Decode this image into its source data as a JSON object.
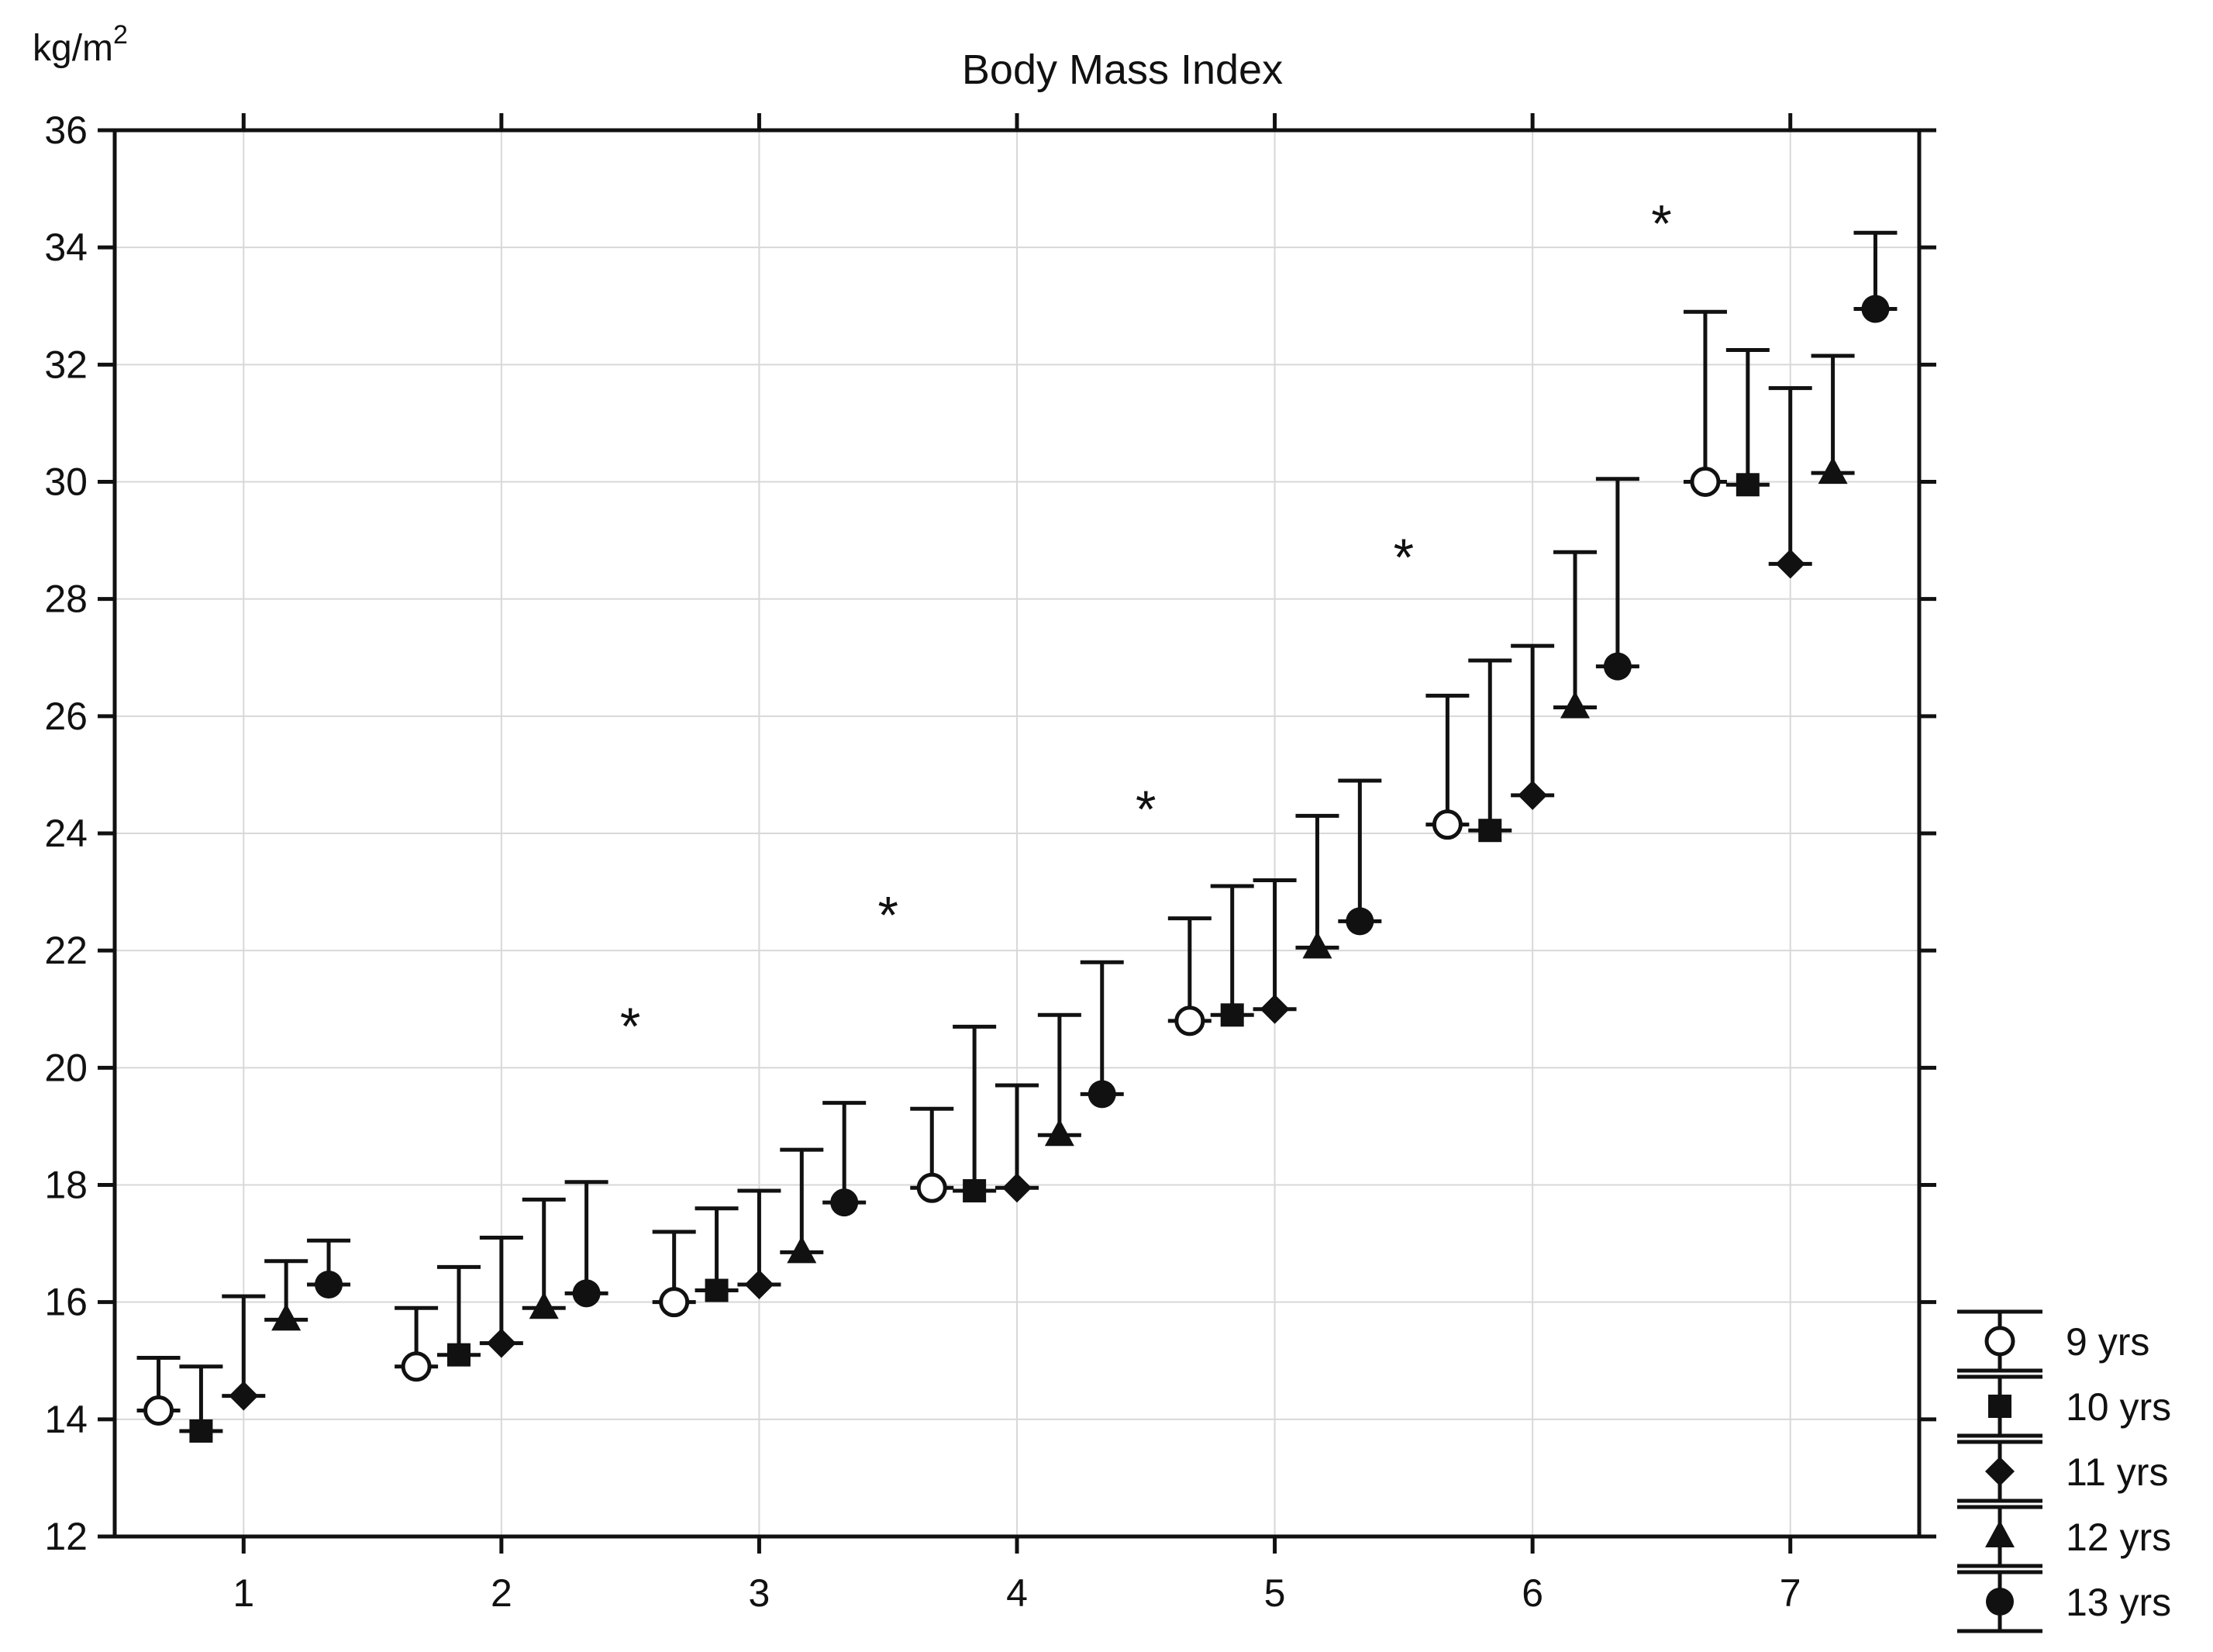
{
  "chart_data": {
    "type": "scatter",
    "title": "Body Mass Index",
    "ylabel": "kg/m",
    "ylabel_superscript": "2",
    "xlabel": "",
    "ylim": [
      12,
      36
    ],
    "xlim": [
      0.5,
      7.5
    ],
    "yticks": [
      12,
      14,
      16,
      18,
      20,
      22,
      24,
      26,
      28,
      30,
      32,
      34,
      36
    ],
    "categories": [
      "1",
      "2",
      "3",
      "4",
      "5",
      "6",
      "7"
    ],
    "grid": true,
    "legend_position": "bottom-right",
    "error_bars": "upper only",
    "significance_marker": "*",
    "significance_between": [
      {
        "between": [
          2,
          3
        ],
        "y": 20.8
      },
      {
        "between": [
          3,
          4
        ],
        "y": 22.7
      },
      {
        "between": [
          4,
          5
        ],
        "y": 24.5
      },
      {
        "between": [
          5,
          6
        ],
        "y": 28.8
      },
      {
        "between": [
          6,
          7
        ],
        "y": 34.5
      }
    ],
    "series": [
      {
        "name": "9 yrs",
        "marker": "open-circle",
        "values": [
          14.15,
          14.9,
          16.0,
          17.95,
          20.8,
          24.15,
          30.0
        ],
        "upper": [
          15.05,
          15.9,
          17.2,
          19.3,
          22.55,
          26.35,
          32.9
        ]
      },
      {
        "name": "10 yrs",
        "marker": "filled-square",
        "values": [
          13.8,
          15.1,
          16.2,
          17.9,
          20.9,
          24.05,
          29.95
        ],
        "upper": [
          14.9,
          16.6,
          17.6,
          20.7,
          23.1,
          26.95,
          32.25
        ]
      },
      {
        "name": "11 yrs",
        "marker": "filled-diamond",
        "values": [
          14.4,
          15.3,
          16.3,
          17.95,
          21.0,
          24.65,
          28.6
        ],
        "upper": [
          16.1,
          17.1,
          17.9,
          19.7,
          23.2,
          27.2,
          31.6
        ]
      },
      {
        "name": "12 yrs",
        "marker": "filled-triangle",
        "values": [
          15.7,
          15.9,
          16.85,
          18.85,
          22.05,
          26.15,
          30.15
        ],
        "upper": [
          16.7,
          17.75,
          18.6,
          20.9,
          24.3,
          28.8,
          32.15
        ]
      },
      {
        "name": "13 yrs",
        "marker": "filled-circle",
        "values": [
          16.3,
          16.15,
          17.7,
          19.55,
          22.5,
          26.85,
          32.95
        ],
        "upper": [
          17.05,
          18.05,
          19.4,
          21.8,
          24.9,
          30.05,
          34.25
        ]
      }
    ]
  }
}
